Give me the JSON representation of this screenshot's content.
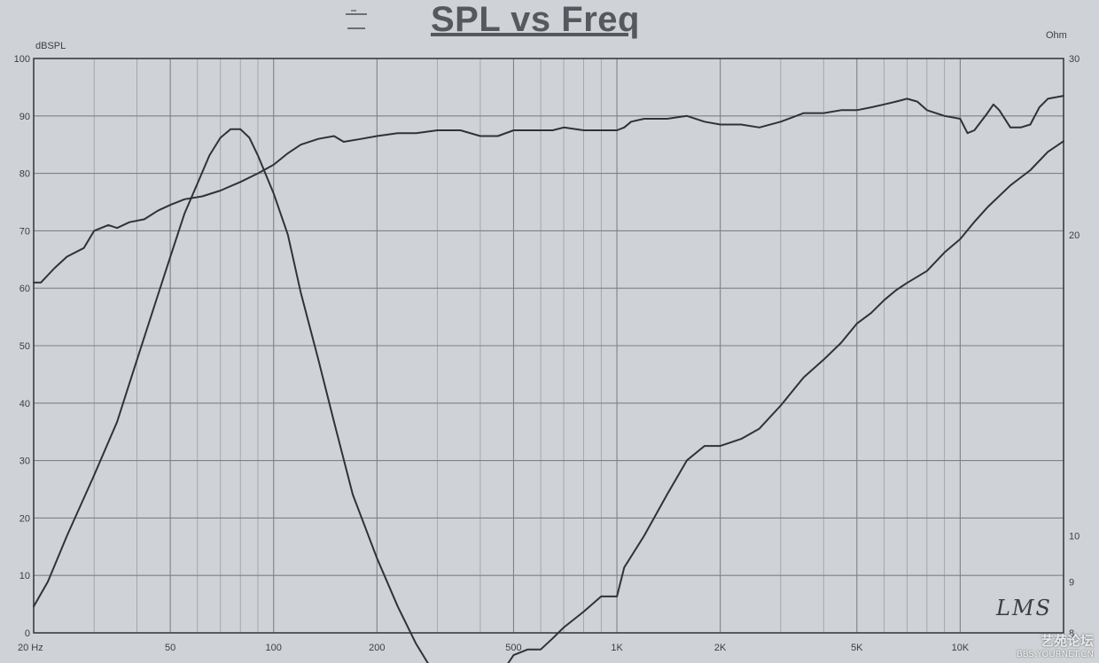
{
  "title": "SPL vs Freq",
  "watermark": {
    "cn": "艺苑论坛",
    "url": "BBS.YOURNET.CN"
  },
  "logo_text": "LMS",
  "chart_data": {
    "type": "line",
    "title": "SPL vs Freq",
    "ylabel": "dBSPL",
    "y2label": "Ohm",
    "xscale": "log",
    "xlim": [
      20,
      20000
    ],
    "ylim": [
      0,
      100
    ],
    "y2lim": [
      8,
      30
    ],
    "x_ticks": [
      {
        "value": 20,
        "label": "20 Hz"
      },
      {
        "value": 50,
        "label": "50"
      },
      {
        "value": 100,
        "label": "100"
      },
      {
        "value": 200,
        "label": "200"
      },
      {
        "value": 500,
        "label": "500"
      },
      {
        "value": 1000,
        "label": "1K"
      },
      {
        "value": 2000,
        "label": "2K"
      },
      {
        "value": 5000,
        "label": "5K"
      },
      {
        "value": 10000,
        "label": "10K"
      }
    ],
    "y_ticks": [
      0,
      10,
      20,
      30,
      40,
      50,
      60,
      70,
      80,
      90,
      100
    ],
    "y2_ticks": [
      {
        "value": 30,
        "label": "30"
      },
      {
        "value": 20,
        "label": "20"
      },
      {
        "value": 10,
        "label": "10"
      },
      {
        "value": 9,
        "label": "9"
      },
      {
        "value": 8,
        "label": "8"
      }
    ],
    "grid": true,
    "series": [
      {
        "axis": "left",
        "color": "#303336",
        "points": [
          [
            20,
            61
          ],
          [
            21,
            61
          ],
          [
            23,
            63.5
          ],
          [
            25,
            65.5
          ],
          [
            28,
            67
          ],
          [
            30,
            70
          ],
          [
            33,
            71
          ],
          [
            35,
            70.5
          ],
          [
            38,
            71.5
          ],
          [
            42,
            72
          ],
          [
            46,
            73.5
          ],
          [
            50,
            74.5
          ],
          [
            55,
            75.5
          ],
          [
            62,
            76
          ],
          [
            70,
            77
          ],
          [
            80,
            78.5
          ],
          [
            90,
            80
          ],
          [
            100,
            81.5
          ],
          [
            110,
            83.5
          ],
          [
            120,
            85
          ],
          [
            135,
            86
          ],
          [
            150,
            86.5
          ],
          [
            160,
            85.5
          ],
          [
            180,
            86
          ],
          [
            200,
            86.5
          ],
          [
            230,
            87
          ],
          [
            260,
            87
          ],
          [
            300,
            87.5
          ],
          [
            350,
            87.5
          ],
          [
            400,
            86.5
          ],
          [
            450,
            86.5
          ],
          [
            500,
            87.5
          ],
          [
            550,
            87.5
          ],
          [
            600,
            87.5
          ],
          [
            650,
            87.5
          ],
          [
            700,
            88
          ],
          [
            800,
            87.5
          ],
          [
            900,
            87.5
          ],
          [
            1000,
            87.5
          ],
          [
            1050,
            88
          ],
          [
            1100,
            89
          ],
          [
            1200,
            89.5
          ],
          [
            1400,
            89.5
          ],
          [
            1600,
            90
          ],
          [
            1800,
            89
          ],
          [
            2000,
            88.5
          ],
          [
            2300,
            88.5
          ],
          [
            2600,
            88
          ],
          [
            3000,
            89
          ],
          [
            3500,
            90.5
          ],
          [
            4000,
            90.5
          ],
          [
            4500,
            91
          ],
          [
            5000,
            91
          ],
          [
            5500,
            91.5
          ],
          [
            6000,
            92
          ],
          [
            6500,
            92.5
          ],
          [
            7000,
            93
          ],
          [
            7500,
            92.5
          ],
          [
            8000,
            91
          ],
          [
            9000,
            90
          ],
          [
            10000,
            89.5
          ],
          [
            10500,
            87
          ],
          [
            11000,
            87.5
          ],
          [
            12000,
            90.5
          ],
          [
            12500,
            92
          ],
          [
            13000,
            91
          ],
          [
            14000,
            88
          ],
          [
            15000,
            88
          ],
          [
            16000,
            88.5
          ],
          [
            17000,
            91.5
          ],
          [
            18000,
            93
          ],
          [
            20000,
            93.5
          ]
        ]
      },
      {
        "axis": "right",
        "color": "#303336",
        "points": [
          [
            20,
            8.5
          ],
          [
            22,
            9
          ],
          [
            25,
            10
          ],
          [
            30,
            11.5
          ],
          [
            35,
            13
          ],
          [
            40,
            15
          ],
          [
            45,
            17
          ],
          [
            50,
            19
          ],
          [
            55,
            21
          ],
          [
            60,
            22.5
          ],
          [
            65,
            24
          ],
          [
            70,
            25
          ],
          [
            75,
            25.5
          ],
          [
            80,
            25.5
          ],
          [
            85,
            25
          ],
          [
            90,
            24
          ],
          [
            100,
            22
          ],
          [
            110,
            20
          ],
          [
            120,
            17.5
          ],
          [
            135,
            15
          ],
          [
            150,
            13
          ],
          [
            170,
            11
          ],
          [
            200,
            9.5
          ],
          [
            230,
            8.5
          ],
          [
            260,
            7.8
          ],
          [
            300,
            7.2
          ],
          [
            350,
            7.0
          ],
          [
            400,
            7.0
          ],
          [
            450,
            7.2
          ],
          [
            500,
            7.6
          ],
          [
            550,
            7.7
          ],
          [
            600,
            7.7
          ],
          [
            650,
            7.9
          ],
          [
            700,
            8.1
          ],
          [
            800,
            8.4
          ],
          [
            900,
            8.7
          ],
          [
            950,
            8.7
          ],
          [
            1000,
            8.7
          ],
          [
            1050,
            9.3
          ],
          [
            1200,
            10.0
          ],
          [
            1400,
            11.0
          ],
          [
            1600,
            11.9
          ],
          [
            1800,
            12.3
          ],
          [
            2000,
            12.3
          ],
          [
            2300,
            12.5
          ],
          [
            2600,
            12.8
          ],
          [
            3000,
            13.5
          ],
          [
            3500,
            14.4
          ],
          [
            4000,
            15.0
          ],
          [
            4500,
            15.6
          ],
          [
            5000,
            16.3
          ],
          [
            5500,
            16.7
          ],
          [
            6000,
            17.2
          ],
          [
            6500,
            17.6
          ],
          [
            7000,
            17.9
          ],
          [
            8000,
            18.4
          ],
          [
            9000,
            19.2
          ],
          [
            10000,
            19.8
          ],
          [
            11000,
            20.6
          ],
          [
            12000,
            21.3
          ],
          [
            14000,
            22.4
          ],
          [
            16000,
            23.2
          ],
          [
            18000,
            24.2
          ],
          [
            20000,
            24.8
          ]
        ]
      }
    ]
  }
}
